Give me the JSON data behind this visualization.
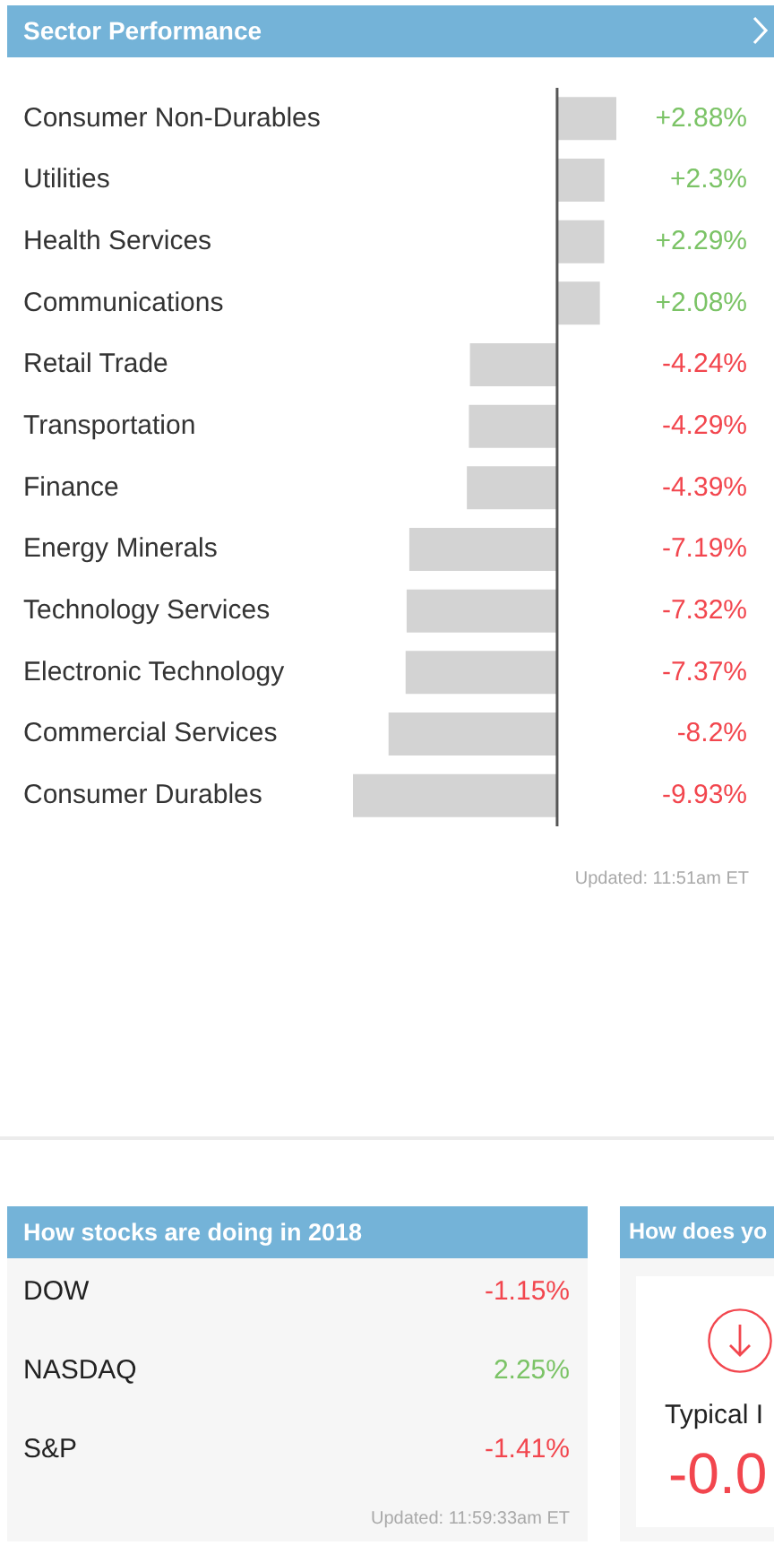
{
  "chart_data": [
    {
      "type": "bar",
      "title": "Sector Performance",
      "orientation": "horizontal",
      "categories": [
        "Consumer Non-Durables",
        "Utilities",
        "Health Services",
        "Communications",
        "Retail Trade",
        "Transportation",
        "Finance",
        "Energy Minerals",
        "Technology Services",
        "Electronic Technology",
        "Commercial Services",
        "Consumer Durables"
      ],
      "values": [
        2.88,
        2.3,
        2.29,
        2.08,
        -4.24,
        -4.29,
        -4.39,
        -7.19,
        -7.32,
        -7.37,
        -8.2,
        -9.93
      ],
      "color": "#d3d3d3",
      "value_labels": [
        "+2.88%",
        "+2.3%",
        "+2.29%",
        "+2.08%",
        "-4.24%",
        "-4.29%",
        "-4.39%",
        "-7.19%",
        "-7.32%",
        "-7.37%",
        "-8.2%",
        "-9.93%"
      ],
      "annotations": [
        "Updated: 11:51am ET"
      ]
    },
    {
      "type": "other",
      "title": "How stocks are doing in 2018",
      "categories": [
        "DOW",
        "NASDAQ",
        "S&P"
      ],
      "values": [
        -1.15,
        2.25,
        -1.41
      ],
      "value_labels": [
        "-1.15%",
        "2.25%",
        "-1.41%"
      ],
      "annotations": [
        "Updated: 11:59:33am ET"
      ]
    },
    {
      "type": "other",
      "title": "How does yo",
      "annotations": [
        "Typical I",
        "-0.0"
      ]
    }
  ]
}
